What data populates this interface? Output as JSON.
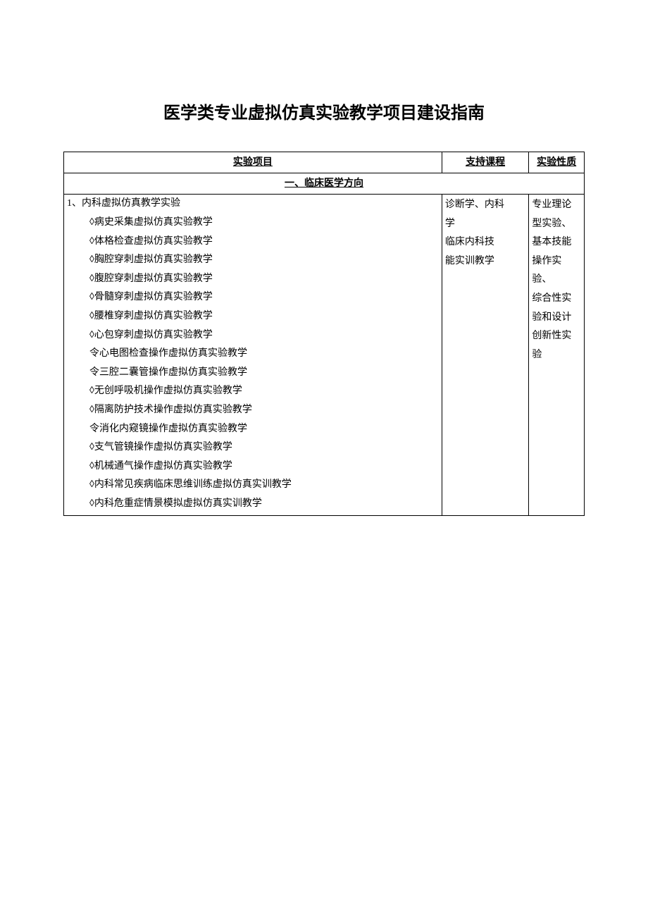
{
  "title": "医学类专业虚拟仿真实验教学项目建设指南",
  "headers": {
    "col1": "实验项目",
    "col2": "支持课程",
    "col3": "实验性质"
  },
  "section": "一、临床医学方向",
  "experiment": {
    "heading": "1、内科虚拟仿真教学实验",
    "items": [
      "◊病史采集虚拟仿真实验教学",
      "◊体格检查虚拟仿真实验教学",
      "◊胸腔穿刺虚拟仿真实验教学",
      "◊腹腔穿刺虚拟仿真实验教学",
      "◊骨髓穿刺虚拟仿真实验教学",
      "◊腰椎穿刺虚拟仿真实验教学",
      "◊心包穿刺虚拟仿真实验教学",
      "令心电图检查操作虚拟仿真实验教学",
      "令三腔二囊管操作虚拟仿真实验教学",
      "◊无创呼吸机操作虚拟仿真实验教学",
      "◊隔离防护技术操作虚拟仿真实验教学",
      "令消化内窥镜操作虚拟仿真实验教学",
      "◊支气管镜操作虚拟仿真实验教学",
      "◊机械通气操作虚拟仿真实验教学",
      "◊内科常见疾病临床思维训练虚拟仿真实训教学",
      "◊内科危重症情景模拟虚拟仿真实训教学"
    ]
  },
  "course_lines": [
    "诊断学、内科",
    "学",
    "临床内科技",
    "能实训教学"
  ],
  "type_lines": [
    "专业理论",
    "型实验、",
    "基本技能",
    "操作实验、",
    "综合性实",
    "验和设计",
    "创新性实",
    "验"
  ]
}
